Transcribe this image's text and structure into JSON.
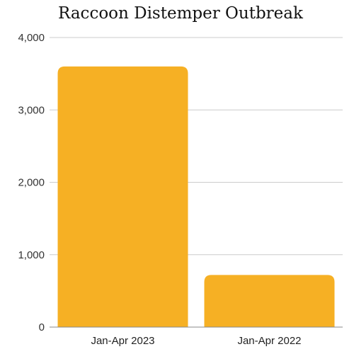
{
  "chart_data": {
    "type": "bar",
    "title": "Raccoon Distemper Outbreak",
    "xlabel": "",
    "ylabel": "",
    "categories": [
      "Jan-Apr 2023",
      "Jan-Apr 2022"
    ],
    "values": [
      3600,
      720
    ],
    "ylim": [
      0,
      4000
    ],
    "yticks": [
      0,
      1000,
      2000,
      3000,
      4000
    ],
    "ytick_labels": [
      "0",
      "1,000",
      "2,000",
      "3,000",
      "4,000"
    ],
    "grid": true,
    "legend": "none",
    "colors": {
      "bar": "#F6B024",
      "grid": "#cccccc",
      "axis": "#888888"
    }
  }
}
